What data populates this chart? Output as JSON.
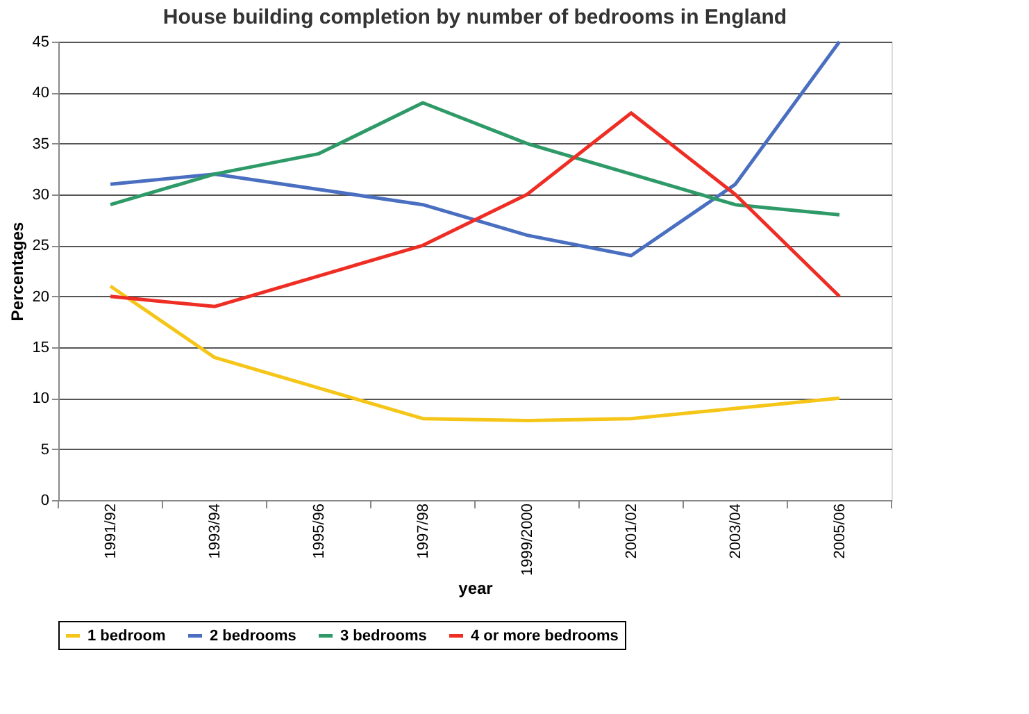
{
  "chart_data": {
    "type": "line",
    "title": "House building completion by number of bedrooms in England",
    "xlabel": "year",
    "ylabel": "Percentages",
    "categories": [
      "1991/92",
      "1993/94",
      "1995/96",
      "1997/98",
      "1999/2000",
      "2001/02",
      "2003/04",
      "2005/06"
    ],
    "series": [
      {
        "name": "1 bedroom",
        "color": "#f5c518",
        "values": [
          21,
          14,
          11,
          8,
          7.8,
          8,
          9,
          10
        ]
      },
      {
        "name": "2 bedrooms",
        "color": "#4a6fc0",
        "values": [
          31,
          32,
          30.5,
          29,
          26,
          24,
          31,
          45
        ]
      },
      {
        "name": "3 bedrooms",
        "color": "#2e9a68",
        "values": [
          29,
          32,
          34,
          39,
          35,
          32,
          29,
          28
        ]
      },
      {
        "name": "4 or more bedrooms",
        "color": "#ee2e24",
        "values": [
          20,
          19,
          22,
          25,
          30,
          38,
          30,
          20
        ]
      }
    ],
    "ylim": [
      0,
      45
    ],
    "yticks": [
      0,
      5,
      10,
      15,
      20,
      25,
      30,
      35,
      40,
      45
    ],
    "grid": "y",
    "legend": "bottom",
    "marker": "none",
    "line_style": "solid"
  }
}
